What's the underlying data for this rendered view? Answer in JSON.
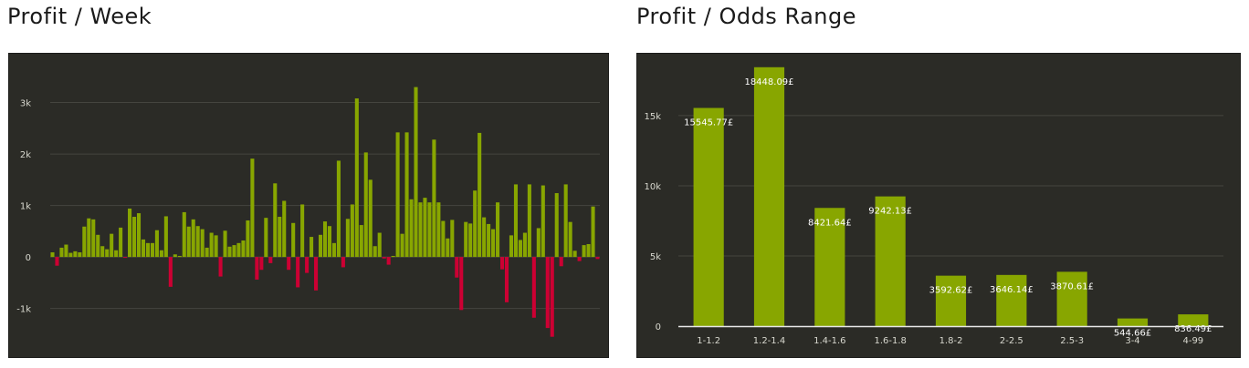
{
  "colors": {
    "panel_bg": "#2b2b26",
    "bar_positive": "#88a600",
    "bar_negative": "#cc0033",
    "grid": "#45453f",
    "baseline": "#e8e8e8",
    "text": "#d8d8cf"
  },
  "chart_data": [
    {
      "type": "bar",
      "title": "Profit / Week",
      "ylim": [
        -1750,
        3700
      ],
      "yticks": [
        -1000,
        0,
        1000,
        2000,
        3000
      ],
      "ytick_labels": [
        "-1k",
        "0",
        "1k",
        "2k",
        "3k"
      ],
      "grid": true,
      "values": [
        90,
        -170,
        180,
        240,
        80,
        110,
        90,
        590,
        750,
        730,
        430,
        210,
        150,
        450,
        130,
        570,
        -10,
        940,
        780,
        850,
        340,
        270,
        270,
        520,
        130,
        790,
        -580,
        50,
        20,
        870,
        590,
        730,
        600,
        540,
        180,
        470,
        420,
        -380,
        510,
        200,
        230,
        270,
        320,
        710,
        1910,
        -440,
        -250,
        760,
        -120,
        1430,
        780,
        1090,
        -250,
        660,
        -590,
        1020,
        -310,
        390,
        -650,
        430,
        690,
        600,
        270,
        1870,
        -200,
        740,
        1020,
        3080,
        620,
        2030,
        1500,
        210,
        470,
        -30,
        -150,
        20,
        2420,
        450,
        2420,
        1120,
        3300,
        1060,
        1150,
        1060,
        2280,
        1060,
        700,
        360,
        720,
        -400,
        -1030,
        680,
        650,
        1290,
        2410,
        770,
        640,
        540,
        1060,
        -240,
        -880,
        420,
        1410,
        330,
        470,
        1410,
        -1180,
        560,
        1390,
        -1380,
        -1550,
        1240,
        -180,
        1410,
        680,
        120,
        -80,
        230,
        250,
        980,
        -40
      ]
    },
    {
      "type": "bar",
      "title": "Profit / Odds Range",
      "categories": [
        "1-1.2",
        "1.2-1.4",
        "1.4-1.6",
        "1.6-1.8",
        "1.8-2",
        "2-2.5",
        "2.5-3",
        "3-4",
        "4-99"
      ],
      "values": [
        15545.77,
        18448.09,
        8421.64,
        9242.13,
        3592.62,
        3646.14,
        3870.61,
        544.66,
        836.49
      ],
      "data_labels": [
        "15545.77£",
        "18448.09£",
        "8421.64£",
        "9242.13£",
        "3592.62£",
        "3646.14£",
        "3870.61£",
        "544.66£",
        "836.49£"
      ],
      "ylim": [
        0,
        18500
      ],
      "yticks": [
        0,
        5000,
        10000,
        15000
      ],
      "ytick_labels": [
        "0",
        "5k",
        "10k",
        "15k"
      ],
      "grid": true
    }
  ]
}
